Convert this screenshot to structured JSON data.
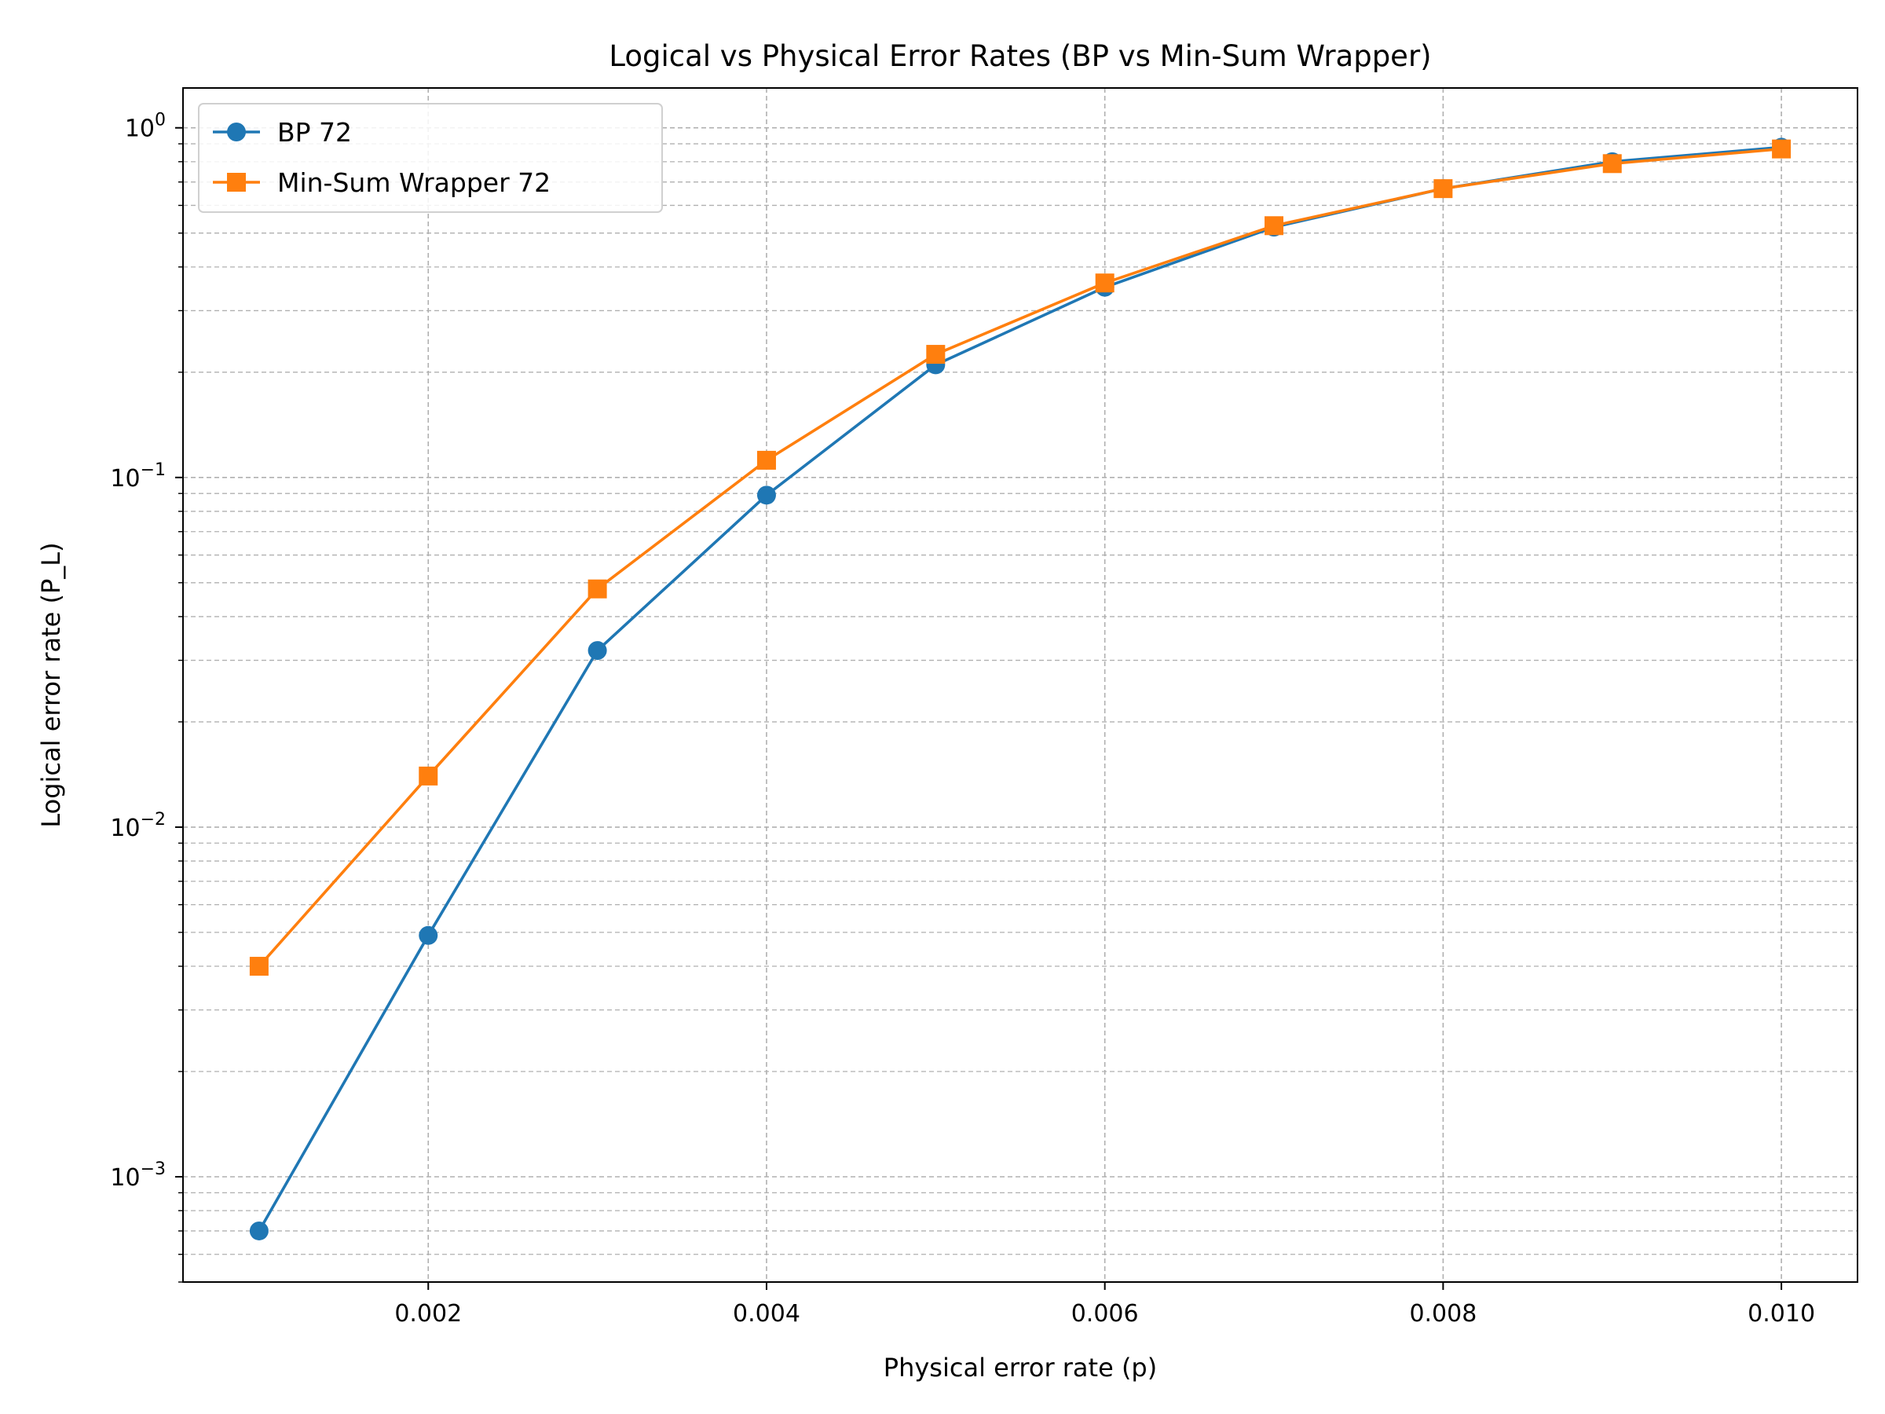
{
  "chart_data": {
    "type": "line",
    "title": "Logical vs Physical Error Rates (BP vs Min-Sum Wrapper)",
    "xlabel": "Physical error rate (p)",
    "ylabel": "Logical error rate (P_L)",
    "x_scale": "linear",
    "y_scale": "log",
    "xlim": [
      0.00055,
      0.01045
    ],
    "ylim": [
      0.0005,
      1.3
    ],
    "x_ticks": [
      "0.002",
      "0.004",
      "0.006",
      "0.008",
      "0.010"
    ],
    "x_tick_values": [
      0.002,
      0.004,
      0.006,
      0.008,
      0.01
    ],
    "y_ticks": [
      {
        "base": "10",
        "exp": "−3",
        "value": 0.001
      },
      {
        "base": "10",
        "exp": "−2",
        "value": 0.01
      },
      {
        "base": "10",
        "exp": "−1",
        "value": 0.1
      },
      {
        "base": "10",
        "exp": "0",
        "value": 1
      }
    ],
    "grid": "both (major and minor, dashed)",
    "legend_position": "top-left",
    "x": [
      0.001,
      0.002,
      0.003,
      0.004,
      0.005,
      0.006,
      0.007,
      0.008,
      0.009,
      0.01
    ],
    "series": [
      {
        "name": "BP 72",
        "color": "#1f77b4",
        "marker": "circle",
        "values": [
          0.0007,
          0.0049,
          0.032,
          0.089,
          0.21,
          0.35,
          0.52,
          0.67,
          0.8,
          0.88
        ]
      },
      {
        "name": "Min-Sum Wrapper 72",
        "color": "#ff7f0e",
        "marker": "square",
        "values": [
          0.004,
          0.014,
          0.048,
          0.112,
          0.225,
          0.36,
          0.525,
          0.67,
          0.79,
          0.87
        ]
      }
    ]
  }
}
